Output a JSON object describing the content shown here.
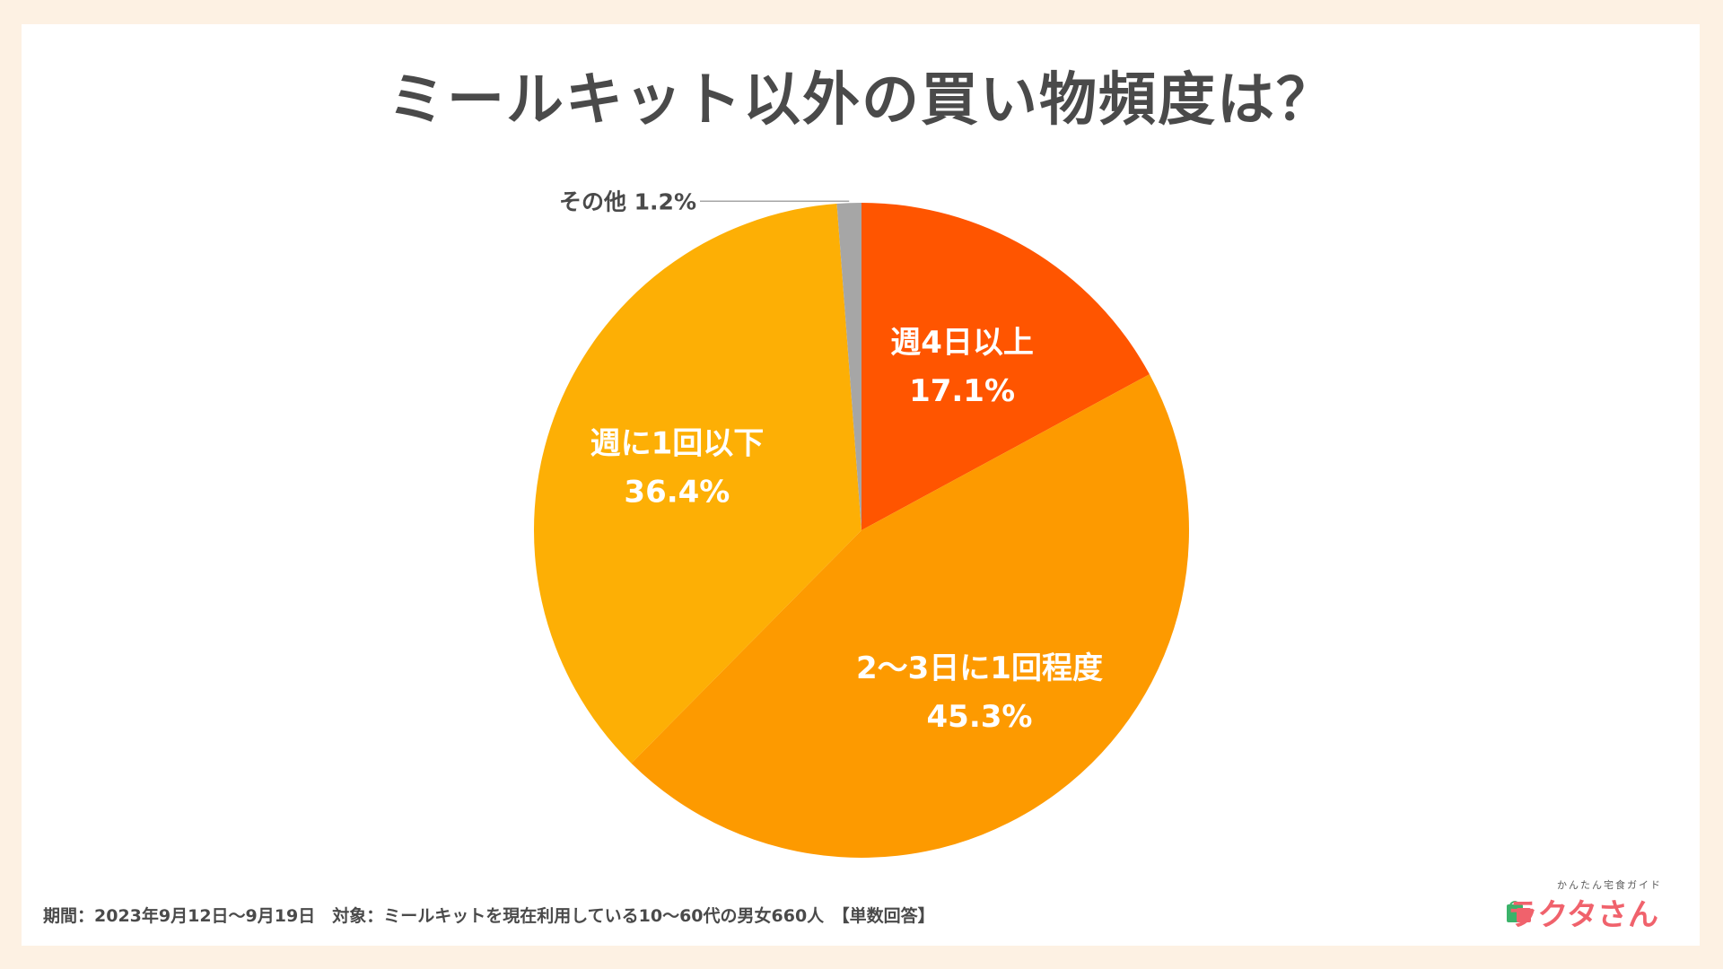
{
  "title": "ミールキット以外の買い物頻度は？",
  "footnote": "期間：2023年9月12日〜9月19日　対象：ミールキットを現在利用している10〜60代の男女660人　【単数回答】",
  "logo": {
    "subtitle": "かんたん宅食ガイド",
    "name": "ラクタさん"
  },
  "colors": {
    "background": "#fdf1e3",
    "title": "#4a4a4a",
    "slice_week4": "#ff5500",
    "slice_2to3": "#fd9a00",
    "slice_weekly": "#fdaf05",
    "slice_other": "#a6a6a6",
    "logo": "#f0626c"
  },
  "chart_data": {
    "type": "pie",
    "title": "ミールキット以外の買い物頻度は？",
    "start": "12 o'clock",
    "direction": "clockwise",
    "slices": [
      {
        "label": "週4日以上",
        "value": 17.1,
        "value_label": "17.1%",
        "color": "#ff5500",
        "label_position": "inside"
      },
      {
        "label": "2〜3日に1回程度",
        "value": 45.3,
        "value_label": "45.3%",
        "color": "#fd9a00",
        "label_position": "inside"
      },
      {
        "label": "週に1回以下",
        "value": 36.4,
        "value_label": "36.4%",
        "color": "#fdaf05",
        "label_position": "inside"
      },
      {
        "label": "その他",
        "value": 1.2,
        "value_label": "1.2%",
        "color": "#a6a6a6",
        "label_position": "outside-left"
      }
    ]
  }
}
